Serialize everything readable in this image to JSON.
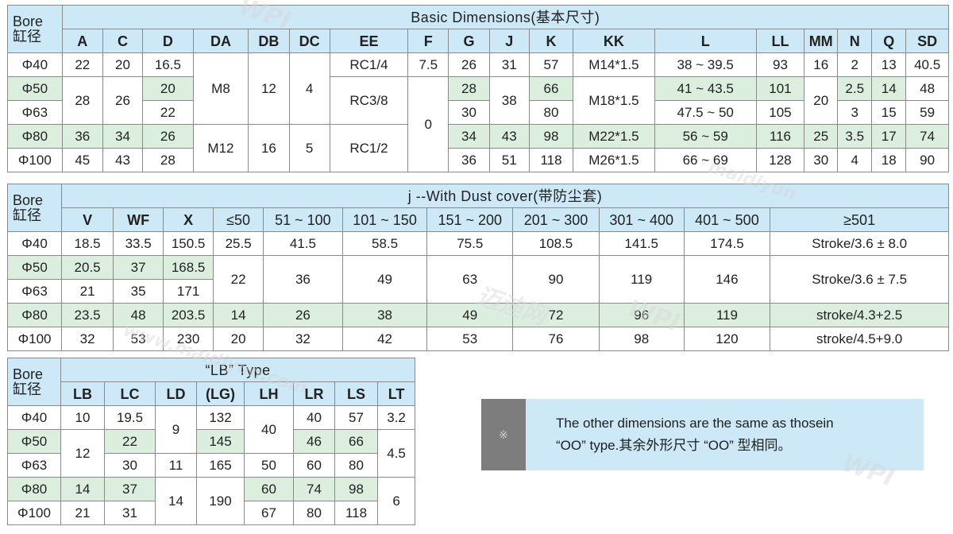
{
  "basic": {
    "bore_label": "Bore\n缸径",
    "title": "Basic Dimensions(基本尺寸)",
    "headers": [
      "A",
      "C",
      "D",
      "DA",
      "DB",
      "DC",
      "EE",
      "F",
      "G",
      "J",
      "K",
      "KK",
      "L",
      "LL",
      "MM",
      "N",
      "Q",
      "SD"
    ],
    "bores": [
      "Φ40",
      "Φ50",
      "Φ63",
      "Φ80",
      "Φ100"
    ],
    "cells": {
      "a40": "22",
      "a5063": "28",
      "a80": "36",
      "a100": "45",
      "c40": "20",
      "c5063": "26",
      "c80": "34",
      "c100": "43",
      "d40": "16.5",
      "d50": "20",
      "d63": "22",
      "d80": "26",
      "d100": "28",
      "da4063": "M8",
      "da80100": "M12",
      "db4063": "12",
      "db80100": "16",
      "dc4063": "4",
      "dc80100": "5",
      "ee40": "RC1/4",
      "ee5063": "RC3/8",
      "ee80100": "RC1/2",
      "f40": "7.5",
      "f50100": "0",
      "g40": "26",
      "g50": "28",
      "g63": "30",
      "g80": "34",
      "g100": "36",
      "j40": "31",
      "j5063": "38",
      "j80": "43",
      "j100": "51",
      "k40": "57",
      "k50": "66",
      "k63": "80",
      "k80": "98",
      "k100": "118",
      "kk40": "M14*1.5",
      "kk5063": "M18*1.5",
      "kk80": "M22*1.5",
      "kk100": "M26*1.5",
      "l40": "38 ~ 39.5",
      "l50": "41 ~ 43.5",
      "l63": "47.5 ~ 50",
      "l80": "56 ~ 59",
      "l100": "66 ~ 69",
      "ll40": "93",
      "ll50": "101",
      "ll63": "105",
      "ll80": "116",
      "ll100": "128",
      "mm40": "16",
      "mm5063": "20",
      "mm80": "25",
      "mm100": "30",
      "n40": "2",
      "n50": "2.5",
      "n63": "3",
      "n80": "3.5",
      "n100": "4",
      "q40": "13",
      "q50": "14",
      "q63": "15",
      "q80": "17",
      "q100": "18",
      "sd40": "40.5",
      "sd50": "48",
      "sd63": "59",
      "sd80": "74",
      "sd100": "90"
    }
  },
  "dust": {
    "bore_label": "Bore\n缸径",
    "title": "j --With Dust cover(带防尘套)",
    "headers": [
      "V",
      "WF",
      "X",
      "≤50",
      "51 ~ 100",
      "101 ~ 150",
      "151 ~ 200",
      "201 ~ 300",
      "301 ~ 400",
      "401 ~ 500",
      "≥501"
    ],
    "bores": [
      "Φ40",
      "Φ50",
      "Φ63",
      "Φ80",
      "Φ100"
    ],
    "cells": {
      "v40": "18.5",
      "v50": "20.5",
      "v63": "21",
      "v80": "23.5",
      "v100": "32",
      "wf40": "33.5",
      "wf50": "37",
      "wf63": "35",
      "wf80": "48",
      "wf100": "53",
      "x40": "150.5",
      "x50": "168.5",
      "x63": "171",
      "x80": "203.5",
      "x100": "230",
      "s1_40": "25.5",
      "s1_5063": "22",
      "s1_80": "14",
      "s1_100": "20",
      "s2_40": "41.5",
      "s2_5063": "36",
      "s2_80": "26",
      "s2_100": "32",
      "s3_40": "58.5",
      "s3_5063": "49",
      "s3_80": "38",
      "s3_100": "42",
      "s4_40": "75.5",
      "s4_5063": "63",
      "s4_80": "49",
      "s4_100": "53",
      "s5_40": "108.5",
      "s5_5063": "90",
      "s5_80": "72",
      "s5_100": "76",
      "s6_40": "141.5",
      "s6_5063": "119",
      "s6_80": "96",
      "s6_100": "98",
      "s7_40": "174.5",
      "s7_5063": "146",
      "s7_80": "119",
      "s7_100": "120",
      "s8_40": "Stroke/3.6 ± 8.0",
      "s8_5063": "Stroke/3.6 ± 7.5",
      "s8_80": "stroke/4.3+2.5",
      "s8_100": "stroke/4.5+9.0"
    }
  },
  "lb": {
    "bore_label": "Bore\n缸径",
    "title": "“LB” Type",
    "headers": [
      "LB",
      "LC",
      "LD",
      "(LG)",
      "LH",
      "LR",
      "LS",
      "LT"
    ],
    "bores": [
      "Φ40",
      "Φ50",
      "Φ63",
      "Φ80",
      "Φ100"
    ],
    "cells": {
      "lb40": "10",
      "lb5063": "12",
      "lb80": "14",
      "lb100": "21",
      "lc40": "19.5",
      "lc50": "22",
      "lc63": "30",
      "lc80": "37",
      "lc100": "31",
      "ld4050": "9",
      "ld63": "11",
      "ld80100": "14",
      "lg40": "132",
      "lg50": "145",
      "lg63": "165",
      "lg80100": "190",
      "lh4050": "40",
      "lh63": "50",
      "lh80": "60",
      "lh100": "67",
      "lr40": "40",
      "lr50": "46",
      "lr63": "60",
      "lr80": "74",
      "lr100": "80",
      "ls40": "57",
      "ls50": "66",
      "ls63": "80",
      "ls80": "98",
      "ls100": "118",
      "lt40": "3.2",
      "lt5063": "4.5",
      "lt80100": "6"
    }
  },
  "note": {
    "symbol": "※",
    "line1": "The other dimensions are the same as thosein",
    "line2": "“OO” type.其余外形尺寸 “OO” 型相同。"
  },
  "watermarks": [
    "WPI",
    "www.maidiyun.com",
    "迈迪网",
    "WPI",
    "maidiyun",
    "WPI"
  ]
}
